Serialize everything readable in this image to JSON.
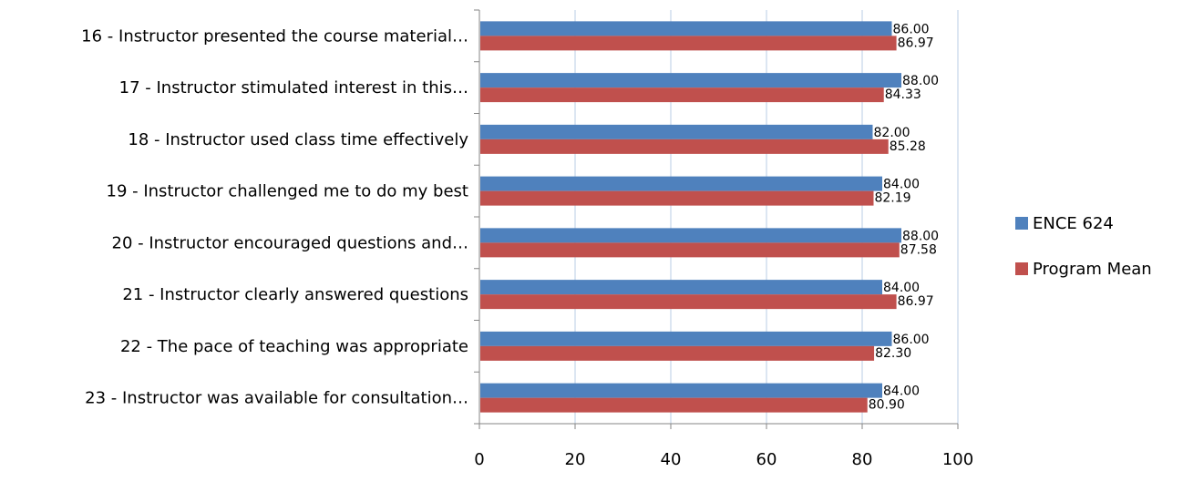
{
  "chart_data": {
    "type": "bar",
    "orientation": "horizontal",
    "categories": [
      "16  - Instructor presented the course material…",
      "17 - Instructor stimulated interest in this…",
      "18 - Instructor used class time effectively",
      "19 - Instructor challenged me to do my best",
      "20 - Instructor encouraged questions and…",
      "21 - Instructor clearly answered questions",
      "22 - The pace of teaching was appropriate",
      "23 - Instructor was available for consultation…"
    ],
    "series": [
      {
        "name": "ENCE 624",
        "color": "#4F81BD",
        "values": [
          86.0,
          88.0,
          82.0,
          84.0,
          88.0,
          84.0,
          86.0,
          84.0
        ],
        "labels": [
          "86.00",
          "88.00",
          "82.00",
          "84.00",
          "88.00",
          "84.00",
          "86.00",
          "84.00"
        ]
      },
      {
        "name": "Program Mean",
        "color": "#C0504D",
        "values": [
          86.97,
          84.33,
          85.28,
          82.19,
          87.58,
          86.97,
          82.3,
          80.9
        ],
        "labels": [
          "86.97",
          "84.33",
          "85.28",
          "82.19",
          "87.58",
          "86.97",
          "82.30",
          "80.90"
        ]
      }
    ],
    "xticks": [
      "0",
      "20",
      "40",
      "60",
      "80",
      "100"
    ],
    "xlim": [
      0,
      100
    ],
    "grid": "vertical",
    "legend_position": "right",
    "gridline_color": "#B9CDE5",
    "axis_color": "#868686"
  }
}
